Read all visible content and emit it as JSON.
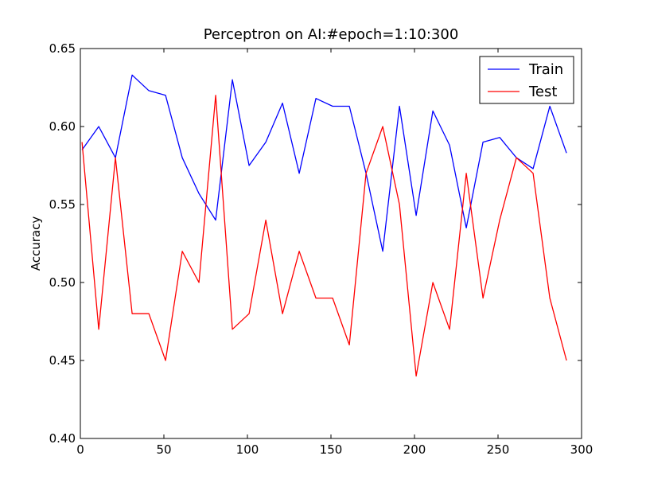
{
  "chart_data": {
    "type": "line",
    "title": "Perceptron on AI:#epoch=1:10:300",
    "xlabel": "",
    "ylabel": "Accuracy",
    "xlim": [
      0,
      300
    ],
    "ylim": [
      0.4,
      0.65
    ],
    "xticks": [
      0,
      50,
      100,
      150,
      200,
      250,
      300
    ],
    "yticks": [
      0.4,
      0.45,
      0.5,
      0.55,
      0.6,
      0.65
    ],
    "xtick_labels": [
      "0",
      "50",
      "100",
      "150",
      "200",
      "250",
      "300"
    ],
    "ytick_labels": [
      "0.40",
      "0.45",
      "0.50",
      "0.55",
      "0.60",
      "0.65"
    ],
    "grid": false,
    "legend_position": "top-right",
    "x": [
      1,
      11,
      21,
      31,
      41,
      51,
      61,
      71,
      81,
      91,
      101,
      111,
      121,
      131,
      141,
      151,
      161,
      171,
      181,
      191,
      201,
      211,
      221,
      231,
      241,
      251,
      261,
      271,
      281,
      291
    ],
    "series": [
      {
        "name": "Train",
        "color": "#0000ff",
        "values": [
          0.585,
          0.6,
          0.58,
          0.633,
          0.623,
          0.62,
          0.58,
          0.557,
          0.54,
          0.63,
          0.575,
          0.59,
          0.615,
          0.57,
          0.618,
          0.613,
          0.613,
          0.57,
          0.52,
          0.613,
          0.543,
          0.61,
          0.588,
          0.535,
          0.59,
          0.593,
          0.58,
          0.573,
          0.613,
          0.583
        ]
      },
      {
        "name": "Test",
        "color": "#ff0000",
        "values": [
          0.59,
          0.47,
          0.58,
          0.48,
          0.48,
          0.45,
          0.52,
          0.5,
          0.62,
          0.47,
          0.48,
          0.54,
          0.48,
          0.52,
          0.49,
          0.49,
          0.46,
          0.57,
          0.6,
          0.55,
          0.44,
          0.5,
          0.47,
          0.57,
          0.49,
          0.54,
          0.58,
          0.57,
          0.49,
          0.45
        ]
      }
    ]
  }
}
